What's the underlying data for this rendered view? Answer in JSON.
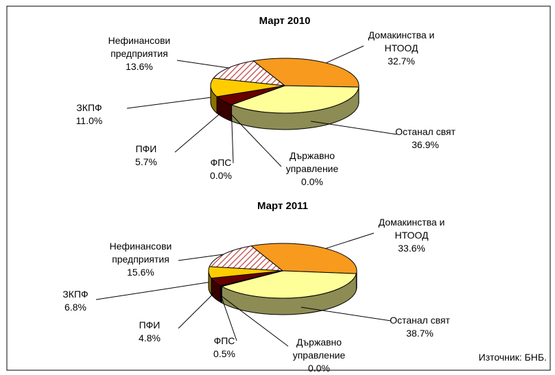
{
  "chart_data": [
    {
      "type": "pie3d",
      "title": "Март 2010",
      "categories": [
        "Домакинства и\nНТООД",
        "Останал свят",
        "Държавно\nуправление",
        "ФПС",
        "ПФИ",
        "ЗКПФ",
        "Нефинансови\nпредприятия"
      ],
      "values": [
        32.7,
        36.9,
        0.0,
        0.0,
        5.7,
        11.0,
        13.6
      ],
      "value_labels": [
        "32.7%",
        "36.9%",
        "0.0%",
        "0.0%",
        "5.7%",
        "11.0%",
        "13.6%"
      ],
      "colors": [
        "#f79a1e",
        "#ffff99",
        "#c0c0c0",
        "#000066",
        "#660000",
        "#ffcc00",
        "#e8a0a0"
      ],
      "hatch": [
        false,
        false,
        false,
        false,
        false,
        false,
        true
      ]
    },
    {
      "type": "pie3d",
      "title": "Март 2011",
      "categories": [
        "Домакинства и\nНТООД",
        "Останал свят",
        "Държавно\nуправление",
        "ФПС",
        "ПФИ",
        "ЗКПФ",
        "Нефинансови\nпредприятия"
      ],
      "values": [
        33.6,
        38.7,
        0.0,
        0.5,
        4.8,
        6.8,
        15.6
      ],
      "value_labels": [
        "33.6%",
        "38.7%",
        "0.0%",
        "0.5%",
        "4.8%",
        "6.8%",
        "15.6%"
      ],
      "colors": [
        "#f79a1e",
        "#ffff99",
        "#c0c0c0",
        "#000066",
        "#660000",
        "#ffcc00",
        "#e8a0a0"
      ],
      "hatch": [
        false,
        false,
        false,
        false,
        false,
        false,
        true
      ]
    }
  ],
  "source": "Източник: БНБ."
}
